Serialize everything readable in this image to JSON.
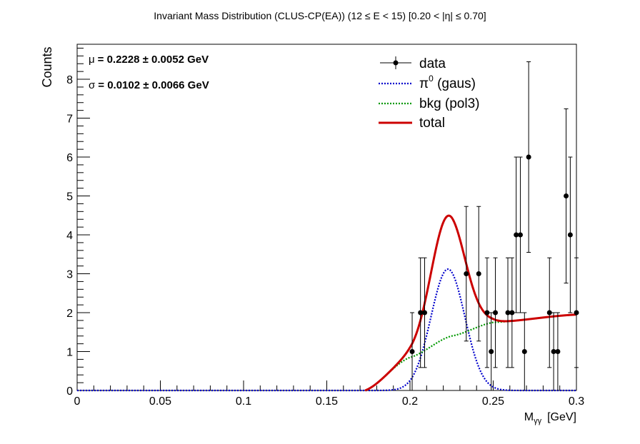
{
  "chart_data": {
    "type": "scatter",
    "title": "Invariant Mass Distribution (CLUS-CP(EA))   (12 ≤ E < 15)   [0.20 < |η| ≤ 0.70]",
    "xlabel": "M",
    "xlabel_sub": "γγ",
    "xlabel_unit": "[GeV]",
    "ylabel": "Counts",
    "xlim": [
      0,
      0.3
    ],
    "ylim": [
      0,
      8.9
    ],
    "x_ticks": [
      0,
      0.05,
      0.1,
      0.15,
      0.2,
      0.25,
      0.3
    ],
    "x_tick_labels": [
      "0",
      "0.05",
      "0.1",
      "0.15",
      "0.2",
      "0.25",
      "0.3"
    ],
    "y_ticks": [
      0,
      1,
      2,
      3,
      4,
      5,
      6,
      7,
      8
    ],
    "y_tick_labels": [
      "0",
      "1",
      "2",
      "3",
      "4",
      "5",
      "6",
      "7",
      "8"
    ],
    "annotations": {
      "mu_symbol": "μ",
      "mu_text": "= 0.2228  ± 0.0052 GeV",
      "sigma_symbol": "σ",
      "sigma_text": "= 0.0102  ± 0.0066 GeV"
    },
    "legend": {
      "placement": "top-right",
      "entries": [
        {
          "label": "data",
          "style": "marker"
        },
        {
          "label": "π",
          "sup": "0",
          "rest": " (gaus)",
          "style": "dotted",
          "color": "#0000cc"
        },
        {
          "label": "bkg (pol3)",
          "style": "dotted",
          "color": "#009900"
        },
        {
          "label": "total",
          "style": "solid",
          "color": "#cc0000"
        }
      ]
    },
    "data_points": [
      {
        "x": 0.2013,
        "y": 1,
        "err": 1
      },
      {
        "x": 0.2063,
        "y": 2,
        "err": 1.41
      },
      {
        "x": 0.2088,
        "y": 2,
        "err": 1.41
      },
      {
        "x": 0.2338,
        "y": 3,
        "err": 1.73
      },
      {
        "x": 0.2413,
        "y": 3,
        "err": 1.73
      },
      {
        "x": 0.2463,
        "y": 2,
        "err": 1.41
      },
      {
        "x": 0.2488,
        "y": 1,
        "err": 1
      },
      {
        "x": 0.2513,
        "y": 2,
        "err": 1.41
      },
      {
        "x": 0.2588,
        "y": 2,
        "err": 1.41
      },
      {
        "x": 0.2613,
        "y": 2,
        "err": 1.41
      },
      {
        "x": 0.2638,
        "y": 4,
        "err": 2
      },
      {
        "x": 0.2663,
        "y": 4,
        "err": 2
      },
      {
        "x": 0.2688,
        "y": 1,
        "err": 1
      },
      {
        "x": 0.2713,
        "y": 6,
        "err": 2.45
      },
      {
        "x": 0.2838,
        "y": 2,
        "err": 1.41
      },
      {
        "x": 0.2863,
        "y": 1,
        "err": 1
      },
      {
        "x": 0.2888,
        "y": 1,
        "err": 1
      },
      {
        "x": 0.2938,
        "y": 5,
        "err": 2.24
      },
      {
        "x": 0.2963,
        "y": 4,
        "err": 2
      },
      {
        "x": 0.3,
        "y": 2,
        "err": 1.41
      }
    ],
    "fits": {
      "gaus": {
        "amplitude": 3.12,
        "mean": 0.2228,
        "sigma": 0.0102,
        "color": "#0000cc"
      },
      "bkg_pol3": {
        "points": [
          [
            0.173,
            0.0
          ],
          [
            0.2,
            0.85
          ],
          [
            0.225,
            1.4
          ],
          [
            0.25,
            1.75
          ],
          [
            0.3,
            1.95
          ]
        ],
        "color": "#009900"
      },
      "total": {
        "color": "#cc0000"
      }
    }
  }
}
